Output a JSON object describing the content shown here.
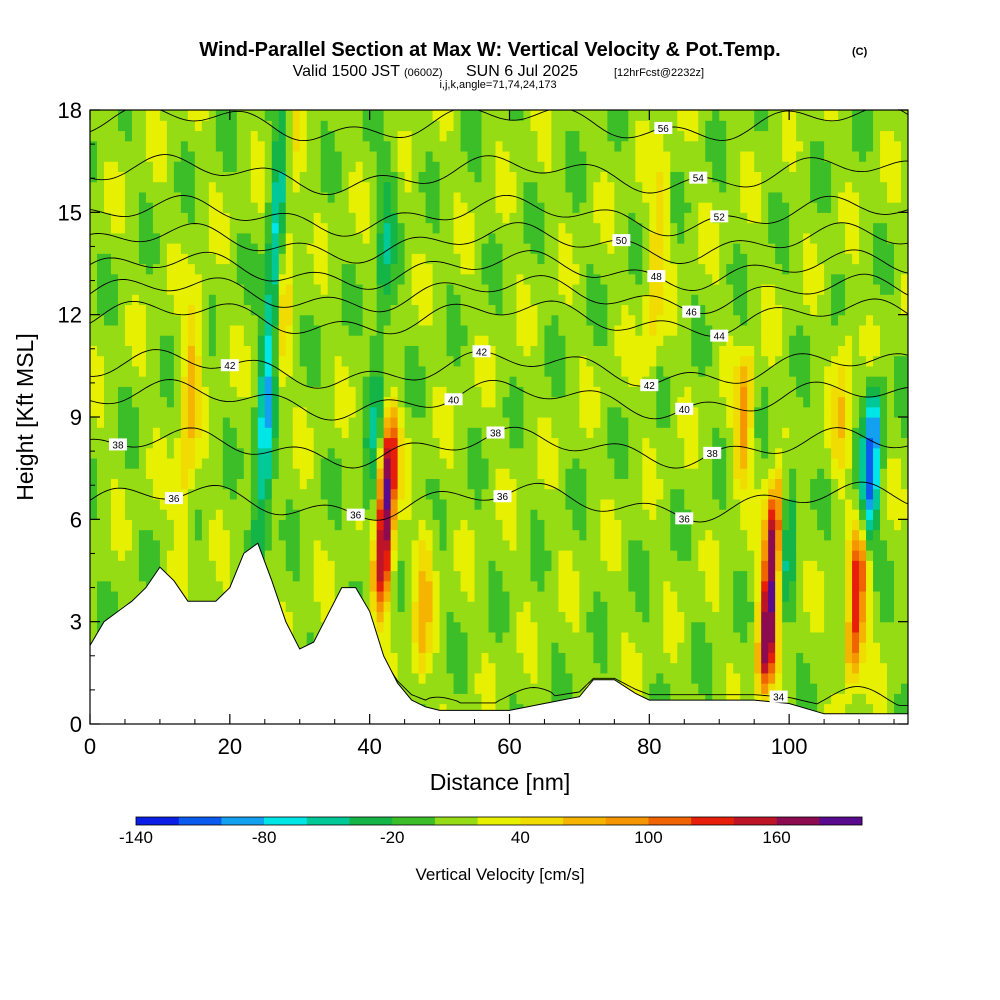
{
  "chart_data": {
    "type": "heatmap",
    "title": "Wind-Parallel Section at Max W: Vertical Velocity & Pot.Temp.",
    "title_mark": "(C)",
    "subtitle": {
      "valid": "Valid 1500 JST",
      "utc": "(0600Z)",
      "date": "SUN 6 Jul 2025",
      "forecast": "[12hrFcst@2232z]",
      "indices": "i,j,k,angle=71,74,24,173"
    },
    "xlabel": "Distance [nm]",
    "ylabel": "Height [Kft MSL]",
    "xlim": [
      0,
      117
    ],
    "ylim": [
      0,
      18
    ],
    "x_ticks": [
      0,
      20,
      40,
      60,
      80,
      100
    ],
    "y_ticks": [
      0,
      3,
      6,
      9,
      12,
      15,
      18
    ],
    "colorbar": {
      "label": "Vertical Velocity [cm/s]",
      "tick_labels": [
        "-140",
        "-80",
        "-20",
        "40",
        "100",
        "160"
      ],
      "tick_values": [
        -140,
        -80,
        -20,
        40,
        100,
        160
      ],
      "levels": [
        -140,
        -120,
        -100,
        -80,
        -60,
        -40,
        -20,
        0,
        20,
        40,
        60,
        80,
        100,
        120,
        140,
        160,
        180
      ],
      "colors": [
        "#0a1ee6",
        "#0a5af0",
        "#14a0f0",
        "#00e6e6",
        "#00c896",
        "#14b446",
        "#3cbe28",
        "#96dc14",
        "#e6f000",
        "#f0dc00",
        "#f5b400",
        "#f59600",
        "#f06400",
        "#e61e0a",
        "#be1428",
        "#8c0a50",
        "#5a0a8c"
      ]
    },
    "background_w": 10,
    "updrafts": [
      {
        "x": 41.5,
        "y0": 3.4,
        "y1": 9.0,
        "w": 180
      },
      {
        "x": 96.5,
        "y0": 1.0,
        "y1": 7.0,
        "w": 180
      },
      {
        "x": 109.0,
        "y0": 1.2,
        "y1": 6.0,
        "w": 120
      },
      {
        "x": 93.0,
        "y0": 7.0,
        "y1": 11.0,
        "w": 70
      },
      {
        "x": 13.0,
        "y0": 5.0,
        "y1": 13.0,
        "w": 50
      },
      {
        "x": 26.5,
        "y0": 9.0,
        "y1": 18.0,
        "w": 50
      },
      {
        "x": 47.0,
        "y0": 1.0,
        "y1": 6.0,
        "w": 50
      },
      {
        "x": 80.0,
        "y0": 10.0,
        "y1": 17.0,
        "w": 40
      },
      {
        "x": 107.0,
        "y0": 7.0,
        "y1": 12.0,
        "w": 40
      }
    ],
    "downdrafts": [
      {
        "x": 24.0,
        "y0": 4.5,
        "y1": 18.0,
        "w": -90
      },
      {
        "x": 111.0,
        "y0": 5.0,
        "y1": 10.0,
        "w": -110
      },
      {
        "x": 39.5,
        "y0": 4.0,
        "y1": 17.5,
        "w": -40
      },
      {
        "x": 99.0,
        "y0": 3.0,
        "y1": 8.0,
        "w": -50
      }
    ],
    "terrain": {
      "x": [
        0,
        2,
        4,
        6,
        8,
        10,
        12,
        14,
        16,
        18,
        20,
        22,
        24,
        26,
        28,
        30,
        32,
        34,
        36,
        38,
        40,
        42,
        44,
        46,
        48,
        50,
        55,
        60,
        65,
        70,
        72,
        75,
        78,
        80,
        85,
        90,
        95,
        100,
        105,
        110,
        117
      ],
      "y": [
        2.3,
        3.0,
        3.3,
        3.6,
        4.0,
        4.6,
        4.2,
        3.6,
        3.6,
        3.6,
        4.0,
        5.0,
        5.3,
        4.2,
        3.0,
        2.2,
        2.4,
        3.2,
        4.0,
        4.0,
        3.3,
        2.0,
        1.2,
        0.7,
        0.5,
        0.4,
        0.4,
        0.4,
        0.6,
        0.8,
        1.3,
        1.3,
        0.9,
        0.7,
        0.7,
        0.7,
        0.7,
        0.6,
        0.3,
        0.3,
        0.3
      ]
    },
    "isentropes": [
      {
        "theta": 34,
        "label_x": 98.5,
        "base_h": 0.5
      },
      {
        "theta": 36,
        "label_x": 12,
        "base_h": 6.5
      },
      {
        "theta": 36,
        "label_x": 38,
        "label_only": true
      },
      {
        "theta": 36,
        "label_x": 59,
        "label_only": true
      },
      {
        "theta": 36,
        "label_x": 85,
        "label_only": true
      },
      {
        "theta": 38,
        "label_x": 4,
        "base_h": 8.1
      },
      {
        "theta": 38,
        "label_x": 58,
        "label_only": true
      },
      {
        "theta": 38,
        "label_x": 89,
        "label_only": true
      },
      {
        "theta": 40,
        "label_x": 52,
        "base_h": 9.5
      },
      {
        "theta": 40,
        "label_x": 85,
        "label_only": true
      },
      {
        "theta": 42,
        "label_x": 20,
        "base_h": 10.4
      },
      {
        "theta": 42,
        "label_x": 56,
        "label_only": true
      },
      {
        "theta": 42,
        "label_x": 80,
        "label_only": true
      },
      {
        "theta": 44,
        "label_x": 90,
        "base_h": 11.9
      },
      {
        "theta": 46,
        "label_x": 86,
        "base_h": 12.6
      },
      {
        "theta": 48,
        "label_x": 81,
        "base_h": 13.3
      },
      {
        "theta": 50,
        "label_x": 76,
        "base_h": 14.1
      },
      {
        "theta": 52,
        "label_x": 90,
        "base_h": 14.9
      },
      {
        "theta": 54,
        "label_x": 87,
        "base_h": 16.1
      },
      {
        "theta": 56,
        "label_x": 82,
        "base_h": 17.6
      }
    ]
  }
}
